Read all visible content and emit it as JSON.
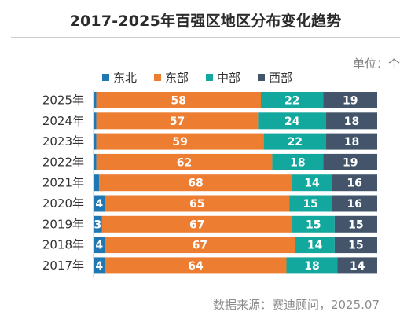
{
  "chart_data": {
    "type": "bar",
    "orientation": "horizontal",
    "stacked": true,
    "title": "2017-2025年百强区地区分布变化趋势",
    "unit_label": "单位：个",
    "source": "数据来源：赛迪顾问，2025.07",
    "categories": [
      "2025年",
      "2024年",
      "2023年",
      "2022年",
      "2021年",
      "2020年",
      "2019年",
      "2018年",
      "2017年"
    ],
    "series": [
      {
        "name": "东北",
        "color": "#1f77b4",
        "values": [
          1,
          1,
          1,
          1,
          2,
          4,
          3,
          4,
          4
        ]
      },
      {
        "name": "东部",
        "color": "#ed7d31",
        "values": [
          58,
          57,
          59,
          62,
          68,
          65,
          67,
          67,
          64
        ]
      },
      {
        "name": "中部",
        "color": "#13a89e",
        "values": [
          22,
          24,
          22,
          18,
          14,
          15,
          15,
          14,
          18
        ]
      },
      {
        "name": "西部",
        "color": "#44546a",
        "values": [
          19,
          18,
          18,
          19,
          16,
          16,
          15,
          15,
          14
        ]
      }
    ],
    "xlim": [
      0,
      100
    ],
    "grid": false,
    "legend_position": "top"
  }
}
